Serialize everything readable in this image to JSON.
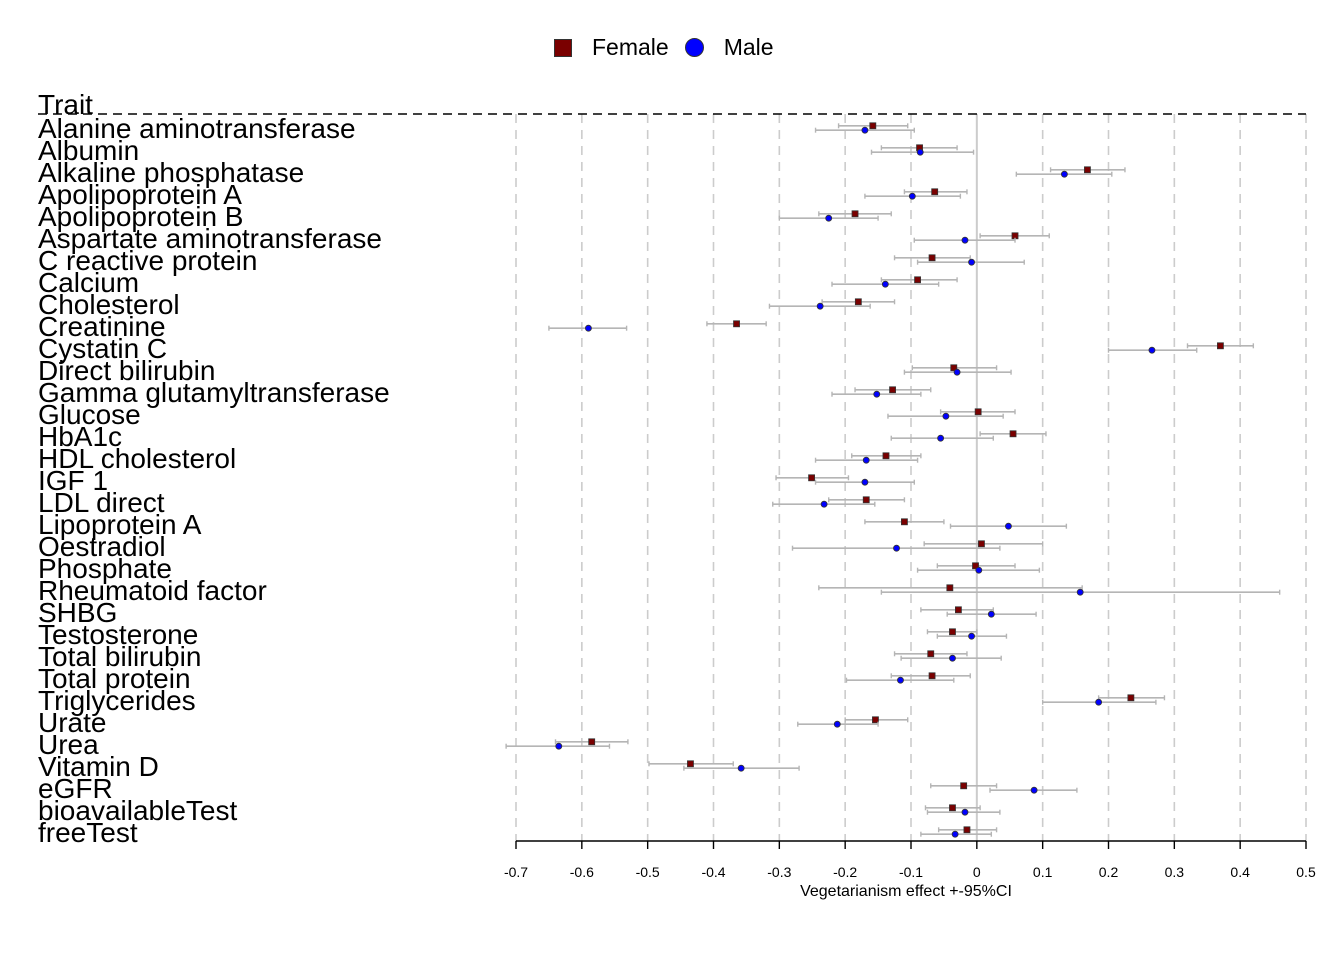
{
  "legend": {
    "female_label": "Female",
    "male_label": "Male"
  },
  "colors": {
    "female": "#7a0000",
    "male": "#0000ff",
    "ci_line": "#b5b5b5",
    "grid": "#cccccc",
    "zero_line": "#cccccc"
  },
  "chart_data": {
    "type": "forest",
    "header": "Trait",
    "xlabel": "Vegetarianism effect +-95%CI",
    "xlim": [
      -0.7,
      0.5
    ],
    "xticks": [
      -0.7,
      -0.6,
      -0.5,
      -0.4,
      -0.3,
      -0.2,
      -0.1,
      0,
      0.1,
      0.2,
      0.3,
      0.4,
      0.5
    ],
    "xtick_labels": [
      "-0.7",
      "-0.6",
      "-0.5",
      "-0.4",
      "-0.3",
      "-0.2",
      "-0.1",
      "0",
      "0.1",
      "0.2",
      "0.3",
      "0.4",
      "0.5"
    ],
    "grid": "vertical dashed",
    "legend_position": "top-center",
    "traits": [
      "Alanine aminotransferase",
      "Albumin",
      "Alkaline phosphatase",
      "Apolipoprotein A",
      "Apolipoprotein B",
      "Aspartate aminotransferase",
      "C reactive protein",
      "Calcium",
      "Cholesterol",
      "Creatinine",
      "Cystatin C",
      "Direct bilirubin",
      "Gamma glutamyltransferase",
      "Glucose",
      "HbA1c",
      "HDL cholesterol",
      "IGF 1",
      "LDL direct",
      "Lipoprotein A",
      "Oestradiol",
      "Phosphate",
      "Rheumatoid factor",
      "SHBG",
      "Testosterone",
      "Total bilirubin",
      "Total protein",
      "Triglycerides",
      "Urate",
      "Urea",
      "Vitamin D",
      "eGFR",
      "bioavailableTest",
      "freeTest"
    ],
    "series": [
      {
        "name": "Female",
        "marker": "square",
        "estimates": [
          -0.158,
          -0.087,
          0.168,
          -0.064,
          -0.185,
          0.058,
          -0.068,
          -0.09,
          -0.18,
          -0.365,
          0.37,
          -0.035,
          -0.128,
          0.002,
          0.055,
          -0.138,
          -0.251,
          -0.168,
          -0.11,
          0.007,
          -0.002,
          -0.041,
          -0.028,
          -0.037,
          -0.07,
          -0.068,
          0.234,
          -0.154,
          -0.585,
          -0.435,
          -0.02,
          -0.037,
          -0.015
        ],
        "lower": [
          -0.21,
          -0.145,
          0.112,
          -0.11,
          -0.24,
          0.005,
          -0.125,
          -0.145,
          -0.235,
          -0.41,
          0.32,
          -0.098,
          -0.185,
          -0.055,
          0.005,
          -0.19,
          -0.305,
          -0.225,
          -0.17,
          -0.08,
          -0.06,
          -0.24,
          -0.085,
          -0.075,
          -0.125,
          -0.13,
          0.185,
          -0.2,
          -0.64,
          -0.498,
          -0.07,
          -0.078,
          -0.058
        ],
        "upper": [
          -0.105,
          -0.03,
          0.225,
          -0.015,
          -0.13,
          0.11,
          -0.01,
          -0.03,
          -0.125,
          -0.32,
          0.42,
          0.03,
          -0.07,
          0.058,
          0.105,
          -0.085,
          -0.195,
          -0.11,
          -0.05,
          0.1,
          0.058,
          0.16,
          0.025,
          0.0,
          -0.015,
          -0.01,
          0.285,
          -0.105,
          -0.53,
          -0.37,
          0.03,
          0.005,
          0.03
        ]
      },
      {
        "name": "Male",
        "marker": "circle",
        "estimates": [
          -0.17,
          -0.086,
          0.133,
          -0.098,
          -0.225,
          -0.018,
          -0.008,
          -0.139,
          -0.238,
          -0.59,
          0.266,
          -0.03,
          -0.152,
          -0.047,
          -0.055,
          -0.168,
          -0.17,
          -0.232,
          0.048,
          -0.122,
          0.003,
          0.157,
          0.022,
          -0.008,
          -0.037,
          -0.116,
          0.185,
          -0.212,
          -0.635,
          -0.358,
          0.087,
          -0.018,
          -0.033
        ],
        "lower": [
          -0.245,
          -0.16,
          0.06,
          -0.17,
          -0.3,
          -0.095,
          -0.09,
          -0.22,
          -0.315,
          -0.65,
          0.2,
          -0.11,
          -0.22,
          -0.135,
          -0.13,
          -0.245,
          -0.245,
          -0.31,
          -0.04,
          -0.28,
          -0.09,
          -0.145,
          -0.045,
          -0.06,
          -0.115,
          -0.198,
          0.1,
          -0.272,
          -0.715,
          -0.445,
          0.02,
          -0.075,
          -0.085
        ],
        "upper": [
          -0.095,
          -0.005,
          0.205,
          -0.025,
          -0.15,
          0.058,
          0.072,
          -0.058,
          -0.162,
          -0.532,
          0.334,
          0.052,
          -0.085,
          0.04,
          0.025,
          -0.09,
          -0.095,
          -0.155,
          0.136,
          0.035,
          0.095,
          0.46,
          0.09,
          0.045,
          0.037,
          -0.035,
          0.272,
          -0.15,
          -0.558,
          -0.27,
          0.152,
          0.035,
          0.022
        ]
      }
    ]
  }
}
